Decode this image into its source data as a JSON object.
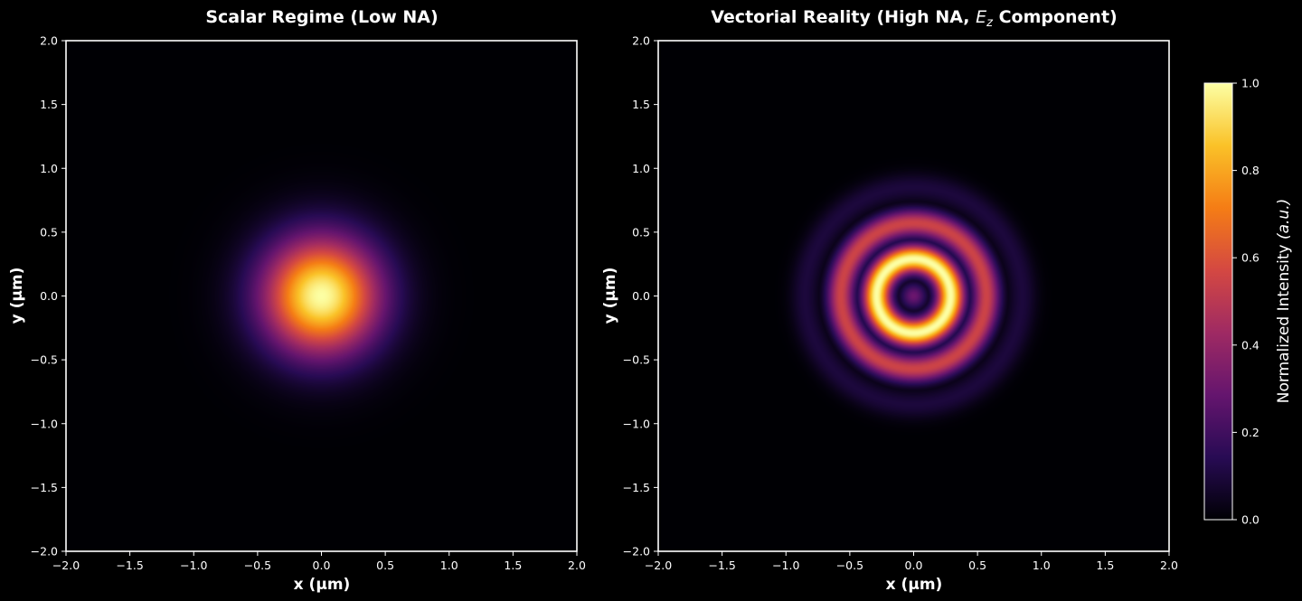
{
  "chart_data": [
    {
      "type": "heatmap",
      "title": "Scalar Regime (Low NA)",
      "xlabel": "x (μm)",
      "ylabel": "y (μm)",
      "xlim": [
        -2.0,
        2.0
      ],
      "ylim": [
        -2.0,
        2.0
      ],
      "x_ticks": [
        "−2.0",
        "−1.5",
        "−1.0",
        "−0.5",
        "0.0",
        "0.5",
        "1.0",
        "1.5",
        "2.0"
      ],
      "y_ticks": [
        "−2.0",
        "−1.5",
        "−1.0",
        "−0.5",
        "0.0",
        "0.5",
        "1.0",
        "1.5",
        "2.0"
      ],
      "colormap": "inferno",
      "grid": false,
      "pattern": {
        "kind": "gaussian-spot",
        "center_um": [
          0.0,
          0.0
        ],
        "peak": 1.0,
        "falloff_radius_um": 0.95,
        "sigma_um": 0.32
      }
    },
    {
      "type": "heatmap",
      "title": "Vectorial Reality (High NA, Ez Component)",
      "title_parts": [
        "Vectorial Reality (High NA, ",
        "E",
        "z",
        " Component)"
      ],
      "xlabel": "x (μm)",
      "ylabel": "y (μm)",
      "xlim": [
        -2.0,
        2.0
      ],
      "ylim": [
        -2.0,
        2.0
      ],
      "x_ticks": [
        "−2.0",
        "−1.5",
        "−1.0",
        "−0.5",
        "0.0",
        "0.5",
        "1.0",
        "1.5",
        "2.0"
      ],
      "y_ticks": [
        "−2.0",
        "−1.5",
        "−1.0",
        "−0.5",
        "0.0",
        "0.5",
        "1.0",
        "1.5",
        "2.0"
      ],
      "colormap": "inferno",
      "grid": false,
      "pattern": {
        "kind": "concentric-rings",
        "center_um": [
          0.0,
          0.0
        ],
        "center_value": 0.3,
        "rings": [
          {
            "radius_um": 0.0,
            "peak": 0.3,
            "width_um": 0.07
          },
          {
            "radius_um": 0.29,
            "peak": 1.0,
            "width_um": 0.075
          },
          {
            "radius_um": 0.57,
            "peak": 0.55,
            "width_um": 0.075
          },
          {
            "radius_um": 0.85,
            "peak": 0.1,
            "width_um": 0.08
          }
        ]
      }
    }
  ],
  "colorbar": {
    "label": "Normalized Intensity",
    "label_unit": "(a.u.)",
    "range": [
      0.0,
      1.0
    ],
    "ticks": [
      "0.0",
      "0.2",
      "0.4",
      "0.6",
      "0.8",
      "1.0"
    ],
    "colormap": "inferno"
  },
  "colors": {
    "background": "#000000",
    "axes": "#ffffff",
    "inferno_stops": [
      "#000004",
      "#280b54",
      "#65156e",
      "#9f2a63",
      "#d44842",
      "#f57d15",
      "#fac228",
      "#fcffa4"
    ]
  }
}
